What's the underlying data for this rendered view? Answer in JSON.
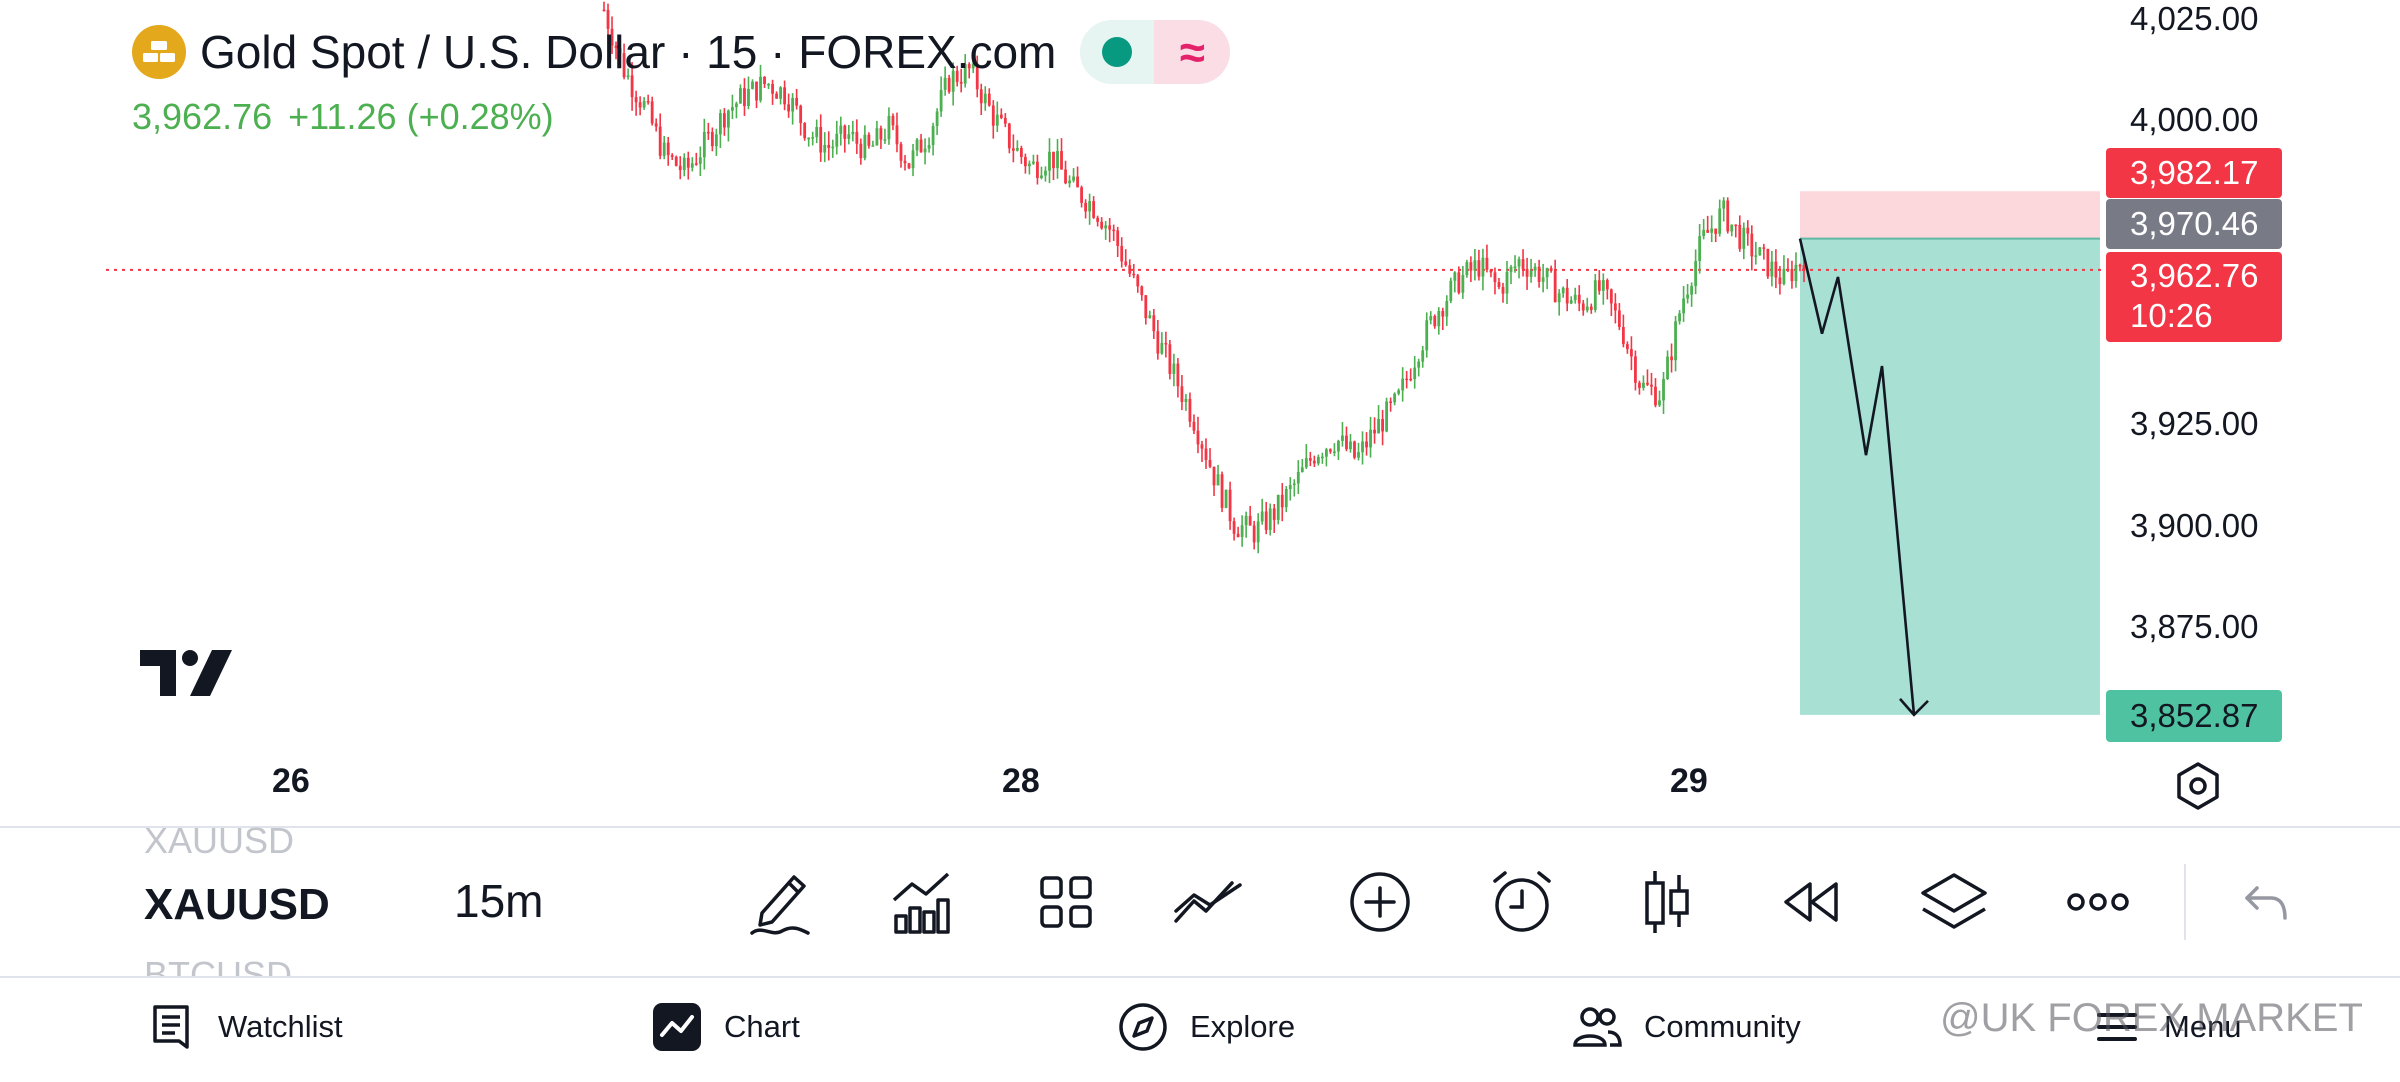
{
  "header": {
    "symbol_title": "Gold Spot / U.S. Dollar · 15 · FOREX.com",
    "last_price": "3,962.76",
    "change": "+11.26 (+0.28%)",
    "wave_glyph": "≈"
  },
  "price_axis": {
    "labels": [
      "4,025.00",
      "4,000.00",
      "3,925.00",
      "3,900.00",
      "3,875.00"
    ],
    "tag_stop": "3,982.17",
    "tag_entry": "3,970.46",
    "tag_last": "3,962.76",
    "tag_countdown": "10:26",
    "tag_target": "3,852.87"
  },
  "time_axis": {
    "labels": [
      "26",
      "28",
      "29"
    ]
  },
  "position": {
    "type": "short",
    "stop": 3982.17,
    "entry": 3970.46,
    "target": 3852.87
  },
  "colors": {
    "up": "#4caf50",
    "down": "#f23645",
    "target_zone": "#a8e0d4",
    "stop_zone": "#fcd7dc",
    "accent": "#089981"
  },
  "toolbar": {
    "symbol_prev": "XAUUSD",
    "symbol_current": "XAUUSD",
    "symbol_next": "BTCUSD",
    "interval": "15m",
    "icons": [
      "pencil-icon",
      "indicators-icon",
      "layouts-icon",
      "compare-icon",
      "add-icon",
      "alert-clock-icon",
      "candle-type-icon",
      "replay-icon",
      "layers-icon",
      "more-icon",
      "undo-icon"
    ]
  },
  "bottom_nav": {
    "watchlist": "Watchlist",
    "chart": "Chart",
    "explore": "Explore",
    "community": "Community",
    "menu": "Menu"
  },
  "watermark": "@UK FOREX MARKET",
  "chart_data": {
    "type": "candlestick",
    "symbol": "XAUUSD",
    "timeframe": "15",
    "ylim": [
      3845,
      4030
    ],
    "last_price": 3962.76,
    "path_close": [
      4027,
      4012,
      4003,
      3991,
      3987,
      3994,
      4002,
      4006,
      4009,
      4006,
      3997,
      3993,
      3996,
      3992,
      3998,
      3989,
      3997,
      4010,
      4012,
      4002,
      3994,
      3988,
      3991,
      3983,
      3979,
      3972,
      3960,
      3948,
      3937,
      3926,
      3912,
      3900,
      3898,
      3903,
      3910,
      3918,
      3921,
      3916,
      3924,
      3930,
      3943,
      3953,
      3960,
      3964,
      3958,
      3965,
      3962,
      3957,
      3954,
      3958,
      3949,
      3934,
      3932,
      3955,
      3970,
      3977,
      3970,
      3965,
      3960,
      3966
    ],
    "annotation": {
      "path": [
        [
          0,
          3970.46
        ],
        [
          1,
          3947
        ],
        [
          2,
          3961
        ],
        [
          3,
          3917
        ],
        [
          4,
          3939
        ],
        [
          5,
          3852.87
        ]
      ]
    }
  }
}
